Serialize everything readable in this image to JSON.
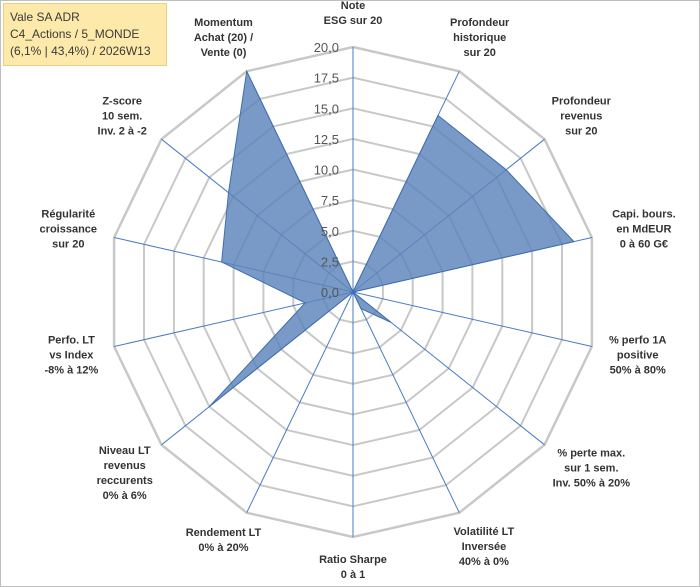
{
  "info": {
    "line1": "Vale SA ADR",
    "line2": "C4_Actions / 5_MONDE",
    "line3": "(6,1% | 43,4%) / 2026W13"
  },
  "chart_data": {
    "type": "radar",
    "title": "",
    "rmax": 20,
    "ticks": [
      "0,0",
      "2,5",
      "5,0",
      "7,5",
      "10,0",
      "12,5",
      "15,0",
      "17,5",
      "20,0"
    ],
    "axes": [
      {
        "label": [
          "Note",
          "ESG sur 20"
        ],
        "value": 0
      },
      {
        "label": [
          "Profondeur",
          "historique",
          "sur 20"
        ],
        "value": 16
      },
      {
        "label": [
          "Profondeur",
          "revenus",
          "sur 20"
        ],
        "value": 16
      },
      {
        "label": [
          "Capi. bours.",
          "en MdEUR",
          "0 à 60 G€"
        ],
        "value": 18.5
      },
      {
        "label": [
          "% perfo 1A",
          "positive",
          "50% à 80%"
        ],
        "value": 0
      },
      {
        "label": [
          "% perte max.",
          "sur 1 sem.",
          "Inv. 50% à 20%"
        ],
        "value": 4
      },
      {
        "label": [
          "Volatilité LT",
          "Inversée",
          "40% à 0%"
        ],
        "value": 1.5
      },
      {
        "label": [
          "Ratio Sharpe",
          "0 à 1"
        ],
        "value": 0
      },
      {
        "label": [
          "Rendement LT",
          "0% à 20%"
        ],
        "value": 0
      },
      {
        "label": [
          "Niveau LT",
          "revenus",
          "reccurents",
          "0% à 6%"
        ],
        "value": 15
      },
      {
        "label": [
          "Perfo. LT",
          "vs Index",
          "-8% à 12%"
        ],
        "value": 4
      },
      {
        "label": [
          "Régularité",
          "croissance",
          "sur 20"
        ],
        "value": 11
      },
      {
        "label": [
          "Z-score",
          "10 sem.",
          "Inv. 2 à -2"
        ],
        "value": 13
      },
      {
        "label": [
          "Momentum",
          "Achat (20) /",
          "Vente (0)"
        ],
        "value": 20
      }
    ],
    "colors": {
      "fill": "#5b84bb",
      "stroke": "#3f6eb0",
      "grid": "#c8c8c8",
      "spoke": "#4a7cc4"
    }
  }
}
